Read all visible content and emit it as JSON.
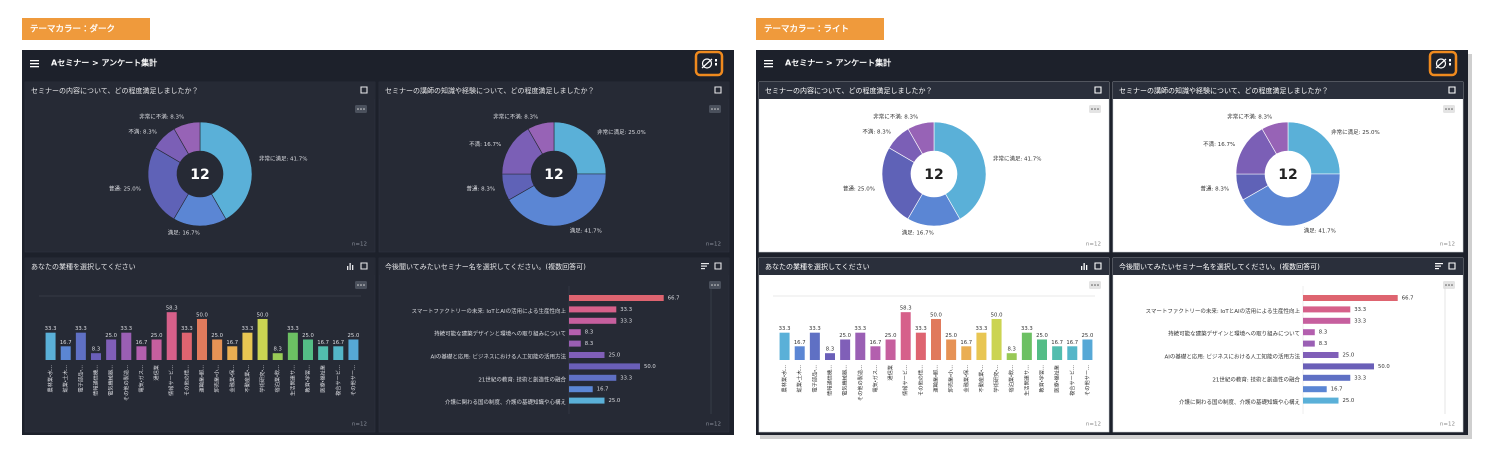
{
  "panels": [
    {
      "label": "テーマカラー：ダーク",
      "theme": "dark"
    },
    {
      "label": "テーマカラー：ライト",
      "theme": "light"
    }
  ],
  "header": {
    "title": "Aセミナー > アンケート集計"
  },
  "chart_data": [
    {
      "type": "pie",
      "title": "セミナーの内容について、どの程度満足しましたか？",
      "center_text": "12",
      "note": "n=12",
      "values": [
        41.7,
        16.7,
        25,
        8.3,
        8.3
      ],
      "value_labels": [
        "非常に満足: 41.7%",
        "満足: 16.7%",
        "普通: 25.0%",
        "不満: 8.3%",
        "非常に不満: 8.3%"
      ],
      "colors": [
        "#5ab0d8",
        "#5b86d4",
        "#5f62b7",
        "#7b5fb6",
        "#9763b6"
      ]
    },
    {
      "type": "pie",
      "title": "セミナーの講師の知識や経験について、どの程度満足しましたか？",
      "center_text": "12",
      "note": "n=12",
      "values": [
        25,
        41.7,
        8.3,
        16.7,
        8.3
      ],
      "value_labels": [
        "非常に満足: 25.0%",
        "満足: 41.7%",
        "普通: 8.3%",
        "不満: 16.7%",
        "非常に不満: 8.3%"
      ],
      "colors": [
        "#5ab0d8",
        "#5b86d4",
        "#5f62b7",
        "#7b5fb6",
        "#9763b6"
      ]
    },
    {
      "type": "bar",
      "title": "あなたの業種を選択してください",
      "note": "n=12",
      "categories": [
        "農林業・水...",
        "鉱業・土木...",
        "電子部品・...",
        "情報通信機...",
        "電気機械器...",
        "その他の製造...",
        "電気・ガス...",
        "通信業",
        "情報サービ...",
        "その他の情...",
        "運輸業・郵...",
        "卸売業・小...",
        "金融業・保...",
        "不動産業・...",
        "学術研究・...",
        "宿泊業・飲...",
        "生活関連サ...",
        "教育・学習...",
        "医療・福祉業",
        "複合サービ...",
        "その他サー..."
      ],
      "values": [
        33.3,
        16.7,
        33.3,
        8.3,
        25,
        33.3,
        16.7,
        25,
        58.3,
        33.3,
        50,
        25,
        16.7,
        33.3,
        50,
        8.3,
        33.3,
        25,
        16.7,
        16.7,
        25
      ],
      "value_labels": [
        "33.3",
        "16.7",
        "33.3",
        "8.3",
        "25.0",
        "33.3",
        "16.7",
        "25.0",
        "58.3",
        "33.3",
        "50.0",
        "25.0",
        "16.7",
        "33.3",
        "50.0",
        "8.3",
        "33.3",
        "25.0",
        "16.7",
        "16.7",
        "25.0"
      ],
      "colors": [
        "#5ab0d8",
        "#5b86d4",
        "#5f70c4",
        "#6a5fb8",
        "#805fb8",
        "#9a5fb4",
        "#b35fae",
        "#c65f9e",
        "#d6608a",
        "#de6470",
        "#e07a5c",
        "#e69255",
        "#eaae52",
        "#e8c652",
        "#cbd452",
        "#98c956",
        "#6cc063",
        "#54bd86",
        "#52bdae",
        "#54b6c8",
        "#56a8d6"
      ],
      "ylim": [
        0,
        78
      ]
    },
    {
      "type": "barh",
      "title": "今後聞いてみたいセミナー名を選択してください。(複数回答可)",
      "note": "n=12",
      "categories": [
        null,
        "スマートファクトリーの未来: IoTとAIの活用による生産性向上",
        null,
        "持続可能な建築デザインと環境への取り組みについて",
        null,
        "AIの基礎と応用: ビジネスにおける人工知能の活用方法",
        null,
        "21世紀の教育: 技術と創造性の融合",
        null,
        "介護に関わる国の制度、介護の基礎知識や心構え"
      ],
      "values": [
        66.7,
        33.3,
        33.3,
        8.3,
        8.3,
        25,
        50,
        33.3,
        16.7,
        25
      ],
      "value_labels": [
        "66.7",
        "33.3",
        "33.3",
        "8.3",
        "8.3",
        "25.0",
        "50.0",
        "33.3",
        "16.7",
        "25.0"
      ],
      "colors": [
        "#de6470",
        "#d6608a",
        "#c65f9e",
        "#b35fae",
        "#9a5fb4",
        "#805fb8",
        "#6a5fb8",
        "#5f70c4",
        "#5b86d4",
        "#5ab0d8"
      ],
      "xlim": [
        0,
        100
      ]
    }
  ]
}
